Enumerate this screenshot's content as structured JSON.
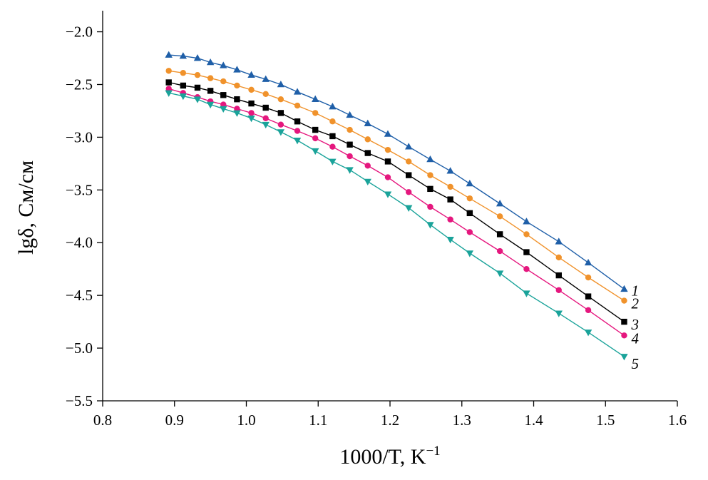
{
  "chart_data": {
    "type": "line",
    "title": "",
    "xlabel": "1000/T, K",
    "xlabel_sup": "−1",
    "ylabel": "lgδ, См/см",
    "xlim": [
      0.8,
      1.6
    ],
    "ylim": [
      -5.5,
      -1.8
    ],
    "grid": false,
    "x_ticks": [
      "0.8",
      "0.9",
      "1.0",
      "1.1",
      "1.2",
      "1.3",
      "1.4",
      "1.5",
      "1.6"
    ],
    "y_ticks": [
      "−2.0",
      "−2.5",
      "−3.0",
      "−3.5",
      "−4.0",
      "−4.5",
      "−5.0",
      "−5.5"
    ],
    "series": [
      {
        "label": "1",
        "color": "#1f5fa8",
        "marker": "triangle-up",
        "x": [
          0.892,
          0.912,
          0.932,
          0.95,
          0.968,
          0.987,
          1.007,
          1.027,
          1.048,
          1.071,
          1.096,
          1.12,
          1.144,
          1.169,
          1.197,
          1.226,
          1.256,
          1.284,
          1.311,
          1.353,
          1.39,
          1.435,
          1.476,
          1.526
        ],
        "y": [
          -2.22,
          -2.23,
          -2.25,
          -2.29,
          -2.32,
          -2.36,
          -2.41,
          -2.45,
          -2.5,
          -2.57,
          -2.64,
          -2.71,
          -2.79,
          -2.87,
          -2.97,
          -3.09,
          -3.21,
          -3.32,
          -3.44,
          -3.63,
          -3.8,
          -3.99,
          -4.19,
          -4.44
        ]
      },
      {
        "label": "2",
        "color": "#f0922b",
        "marker": "circle",
        "x": [
          0.892,
          0.912,
          0.932,
          0.95,
          0.968,
          0.987,
          1.007,
          1.027,
          1.048,
          1.071,
          1.096,
          1.12,
          1.144,
          1.169,
          1.197,
          1.226,
          1.256,
          1.284,
          1.311,
          1.353,
          1.39,
          1.435,
          1.476,
          1.526
        ],
        "y": [
          -2.37,
          -2.39,
          -2.41,
          -2.44,
          -2.47,
          -2.51,
          -2.55,
          -2.59,
          -2.64,
          -2.7,
          -2.77,
          -2.85,
          -2.93,
          -3.02,
          -3.12,
          -3.23,
          -3.36,
          -3.47,
          -3.58,
          -3.75,
          -3.92,
          -4.14,
          -4.33,
          -4.55
        ]
      },
      {
        "label": "3",
        "color": "#000000",
        "marker": "square",
        "x": [
          0.892,
          0.912,
          0.932,
          0.95,
          0.968,
          0.987,
          1.007,
          1.027,
          1.048,
          1.071,
          1.096,
          1.12,
          1.144,
          1.169,
          1.197,
          1.226,
          1.256,
          1.284,
          1.311,
          1.353,
          1.39,
          1.435,
          1.476,
          1.526
        ],
        "y": [
          -2.48,
          -2.51,
          -2.53,
          -2.56,
          -2.6,
          -2.64,
          -2.68,
          -2.72,
          -2.77,
          -2.85,
          -2.93,
          -2.99,
          -3.07,
          -3.15,
          -3.23,
          -3.36,
          -3.49,
          -3.59,
          -3.72,
          -3.92,
          -4.09,
          -4.31,
          -4.51,
          -4.75
        ]
      },
      {
        "label": "4",
        "color": "#e5177e",
        "marker": "circle",
        "x": [
          0.892,
          0.912,
          0.932,
          0.95,
          0.968,
          0.987,
          1.007,
          1.027,
          1.048,
          1.071,
          1.096,
          1.12,
          1.144,
          1.169,
          1.197,
          1.226,
          1.256,
          1.284,
          1.311,
          1.353,
          1.39,
          1.435,
          1.476,
          1.526
        ],
        "y": [
          -2.54,
          -2.58,
          -2.62,
          -2.66,
          -2.69,
          -2.73,
          -2.77,
          -2.82,
          -2.88,
          -2.94,
          -3.01,
          -3.09,
          -3.18,
          -3.27,
          -3.38,
          -3.52,
          -3.66,
          -3.78,
          -3.9,
          -4.08,
          -4.25,
          -4.45,
          -4.64,
          -4.88
        ]
      },
      {
        "label": "5",
        "color": "#1aa39a",
        "marker": "triangle-down",
        "x": [
          0.892,
          0.912,
          0.932,
          0.95,
          0.968,
          0.987,
          1.007,
          1.027,
          1.048,
          1.071,
          1.096,
          1.12,
          1.144,
          1.169,
          1.197,
          1.226,
          1.256,
          1.284,
          1.311,
          1.353,
          1.39,
          1.435,
          1.476,
          1.526
        ],
        "y": [
          -2.58,
          -2.61,
          -2.64,
          -2.69,
          -2.73,
          -2.77,
          -2.82,
          -2.88,
          -2.95,
          -3.03,
          -3.13,
          -3.23,
          -3.31,
          -3.42,
          -3.54,
          -3.67,
          -3.83,
          -3.97,
          -4.1,
          -4.29,
          -4.48,
          -4.67,
          -4.85,
          -5.08
        ]
      }
    ]
  }
}
